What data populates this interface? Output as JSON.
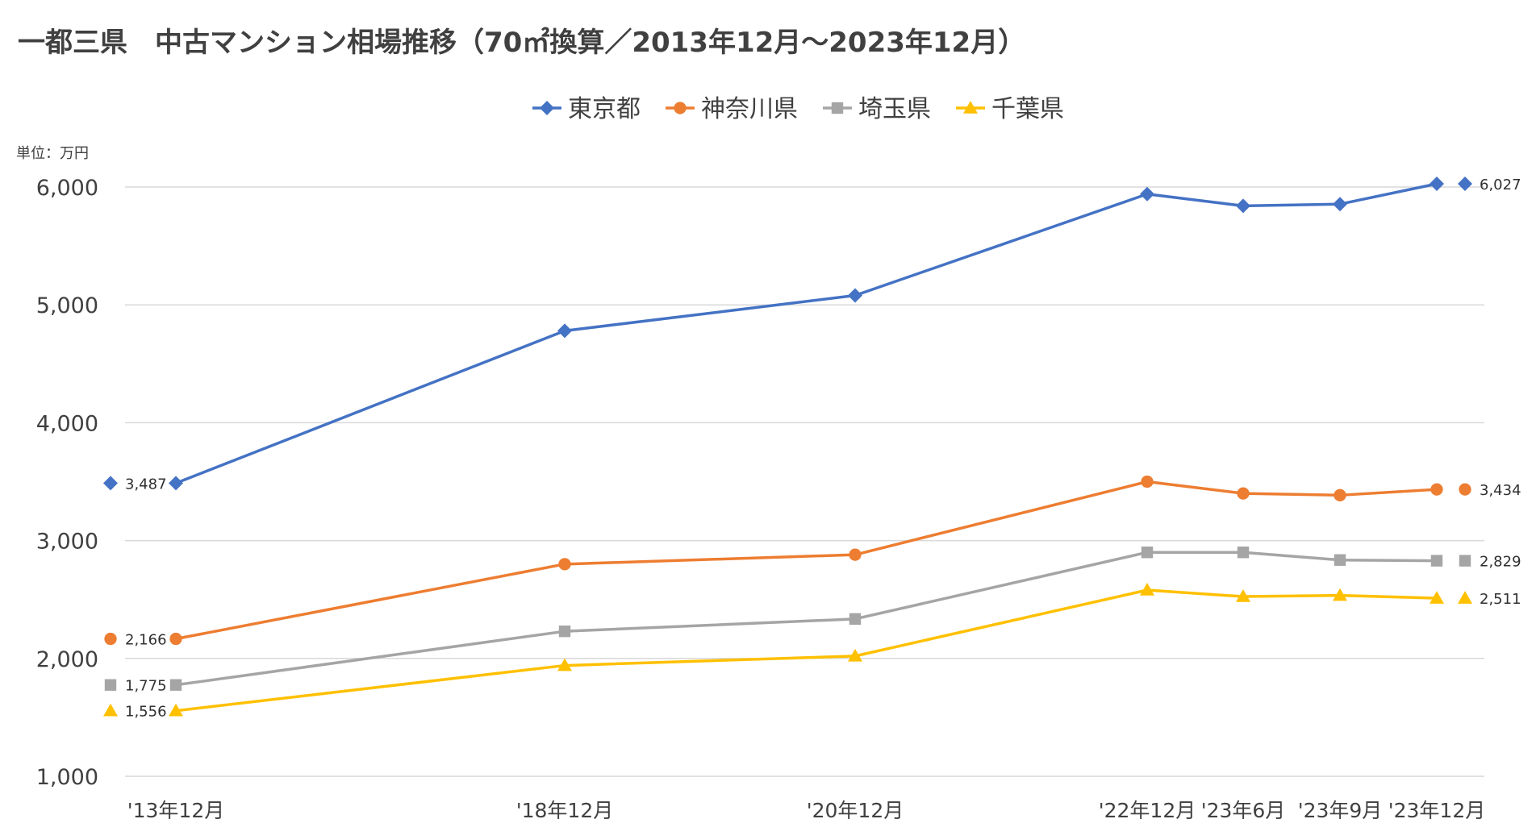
{
  "chart_data": {
    "type": "line",
    "title": "一都三県　中古マンション相場推移（70㎡換算／2013年12月～2023年12月）",
    "unit_label": "単位：万円",
    "categories": [
      "'13年12月",
      "'18年12月",
      "'20年12月",
      "'22年12月",
      "'23年6月",
      "'23年9月",
      "'23年12月"
    ],
    "ylim": [
      1000,
      6000
    ],
    "yticks": [
      1000,
      2000,
      3000,
      4000,
      5000,
      6000
    ],
    "ytick_labels": [
      "1,000",
      "2,000",
      "3,000",
      "4,000",
      "5,000",
      "6,000"
    ],
    "grid": true,
    "legend_position": "top",
    "series": [
      {
        "name": "東京都",
        "color": "#4472C4",
        "marker": "diamond",
        "values": [
          3487,
          4780,
          5080,
          5940,
          5840,
          5855,
          6027
        ],
        "first_label": "3,487",
        "last_label": "6,027"
      },
      {
        "name": "神奈川県",
        "color": "#ED7D31",
        "marker": "circle",
        "values": [
          2166,
          2800,
          2880,
          3500,
          3400,
          3385,
          3434
        ],
        "first_label": "2,166",
        "last_label": "3,434"
      },
      {
        "name": "埼玉県",
        "color": "#A5A5A5",
        "marker": "square",
        "values": [
          1775,
          2230,
          2335,
          2900,
          2900,
          2835,
          2829
        ],
        "first_label": "1,775",
        "last_label": "2,829"
      },
      {
        "name": "千葉県",
        "color": "#FFC000",
        "marker": "triangle",
        "values": [
          1556,
          1940,
          2020,
          2580,
          2525,
          2535,
          2511
        ],
        "first_label": "1,556",
        "last_label": "2,511"
      }
    ]
  }
}
